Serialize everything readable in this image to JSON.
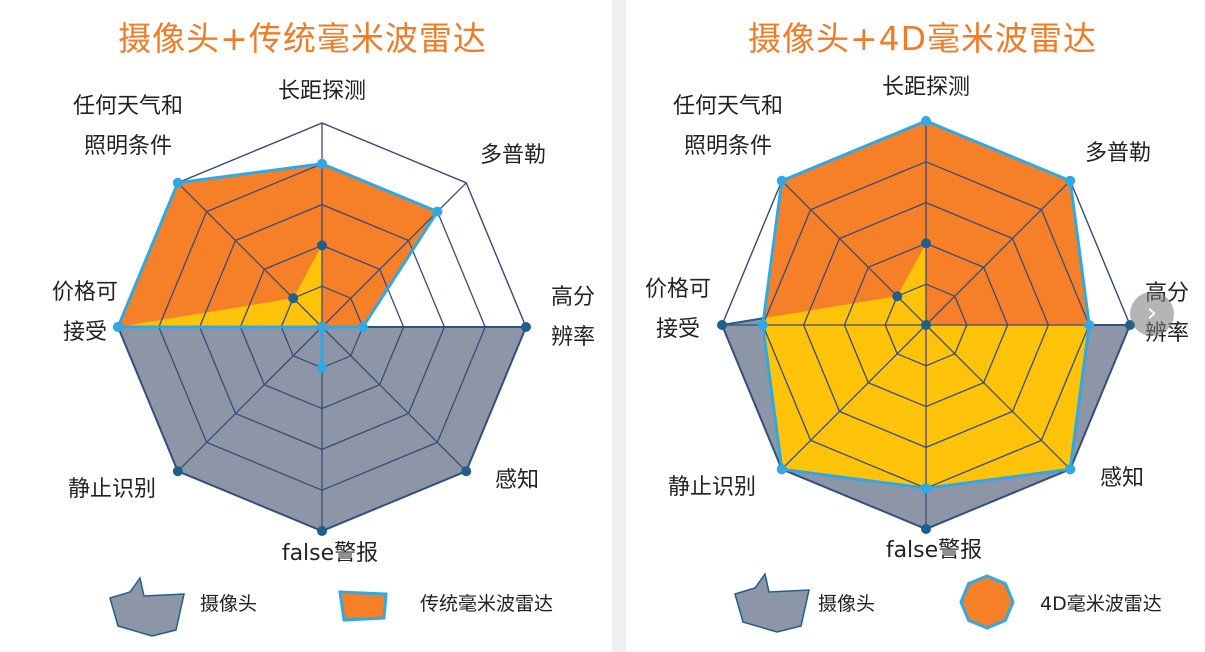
{
  "chart_data": [
    {
      "type": "radar",
      "title": "摄像头+传统毫米波雷达",
      "axes": [
        {
          "label_lines": [
            "长距探测"
          ]
        },
        {
          "label_lines": [
            "多普勒"
          ]
        },
        {
          "label_lines": [
            "高分",
            "辨率"
          ]
        },
        {
          "label_lines": [
            "感知"
          ]
        },
        {
          "label_lines": [
            "false警报"
          ]
        },
        {
          "label_lines": [
            "静止识别"
          ]
        },
        {
          "label_lines": [
            "价格可",
            "接受"
          ]
        },
        {
          "label_lines": [
            "任何天气和",
            "照明条件"
          ]
        }
      ],
      "rings": 5,
      "ylim": [
        0,
        5
      ],
      "series": [
        {
          "name": "摄像头",
          "values": [
            2,
            0,
            5,
            5,
            5,
            5,
            5,
            1
          ],
          "color": "#8c96a6"
        },
        {
          "name": "传统毫米波雷达",
          "values": [
            4,
            4,
            1,
            0,
            1,
            0,
            5,
            5
          ],
          "color": "#f68028"
        }
      ],
      "legend": [
        {
          "label": "摄像头",
          "swatch": "camera"
        },
        {
          "label": "传统毫米波雷达",
          "swatch": "radar"
        }
      ]
    },
    {
      "type": "radar",
      "title": "摄像头+4D毫米波雷达",
      "axes": [
        {
          "label_lines": [
            "长距探测"
          ]
        },
        {
          "label_lines": [
            "多普勒"
          ]
        },
        {
          "label_lines": [
            "高分",
            "辨率"
          ]
        },
        {
          "label_lines": [
            "感知"
          ]
        },
        {
          "label_lines": [
            "false警报"
          ]
        },
        {
          "label_lines": [
            "静止识别"
          ]
        },
        {
          "label_lines": [
            "价格可",
            "接受"
          ]
        },
        {
          "label_lines": [
            "任何天气和",
            "照明条件"
          ]
        }
      ],
      "rings": 5,
      "ylim": [
        0,
        5
      ],
      "series": [
        {
          "name": "摄像头",
          "values": [
            2,
            0,
            5,
            5,
            5,
            5,
            5,
            1
          ],
          "color": "#8c96a6"
        },
        {
          "name": "4D毫米波雷达",
          "values": [
            5,
            5,
            4,
            5,
            4,
            5,
            4,
            5
          ],
          "color": "#f68028"
        }
      ],
      "legend": [
        {
          "label": "摄像头",
          "swatch": "camera"
        },
        {
          "label": "4D毫米波雷达",
          "swatch": "radar"
        }
      ]
    }
  ],
  "colors": {
    "camera_fill": "#8c96a6",
    "camera_stroke": "#1f5f8b",
    "radar_fill": "#f68028",
    "radar_stroke": "#2ea8e6",
    "overlap_fill": "#ffc30a",
    "grid": "#3c4a78",
    "title": "#f07c28"
  },
  "nav_icon": "chevron-right-icon",
  "nav_glyph": "›"
}
